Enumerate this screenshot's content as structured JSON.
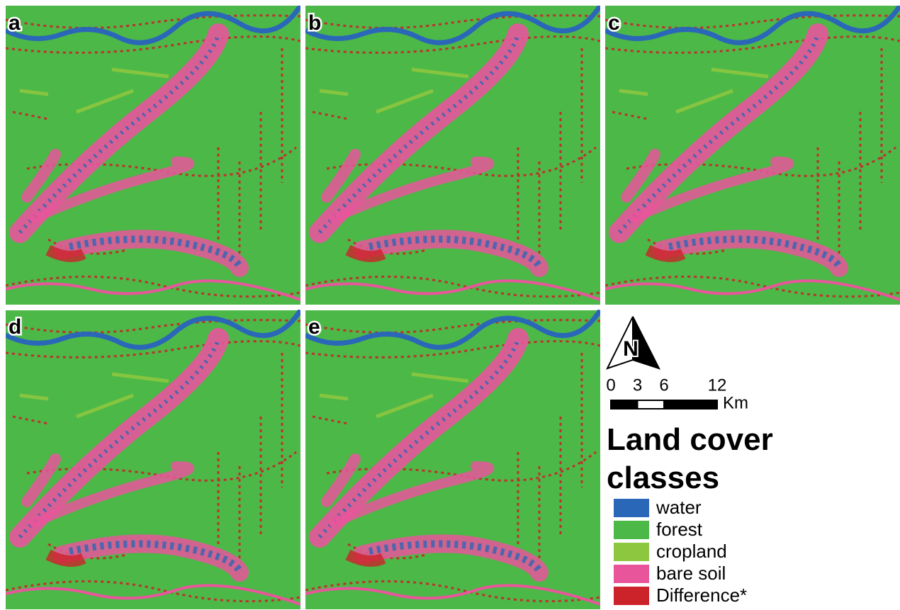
{
  "panels": [
    {
      "label": "a"
    },
    {
      "label": "b"
    },
    {
      "label": "c"
    },
    {
      "label": "d"
    },
    {
      "label": "e"
    }
  ],
  "north_arrow": {
    "label": "N"
  },
  "scale_bar": {
    "ticks": [
      0,
      3,
      6,
      12
    ],
    "unit": "Km"
  },
  "legend": {
    "title": "Land cover classes",
    "items": [
      {
        "name": "water",
        "color": "#2b67b8"
      },
      {
        "name": "forest",
        "color": "#4cb848"
      },
      {
        "name": "cropland",
        "color": "#8dc63f"
      },
      {
        "name": "bare soil",
        "color": "#e8559b"
      },
      {
        "name": "Difference*",
        "color": "#cc2229"
      }
    ]
  }
}
